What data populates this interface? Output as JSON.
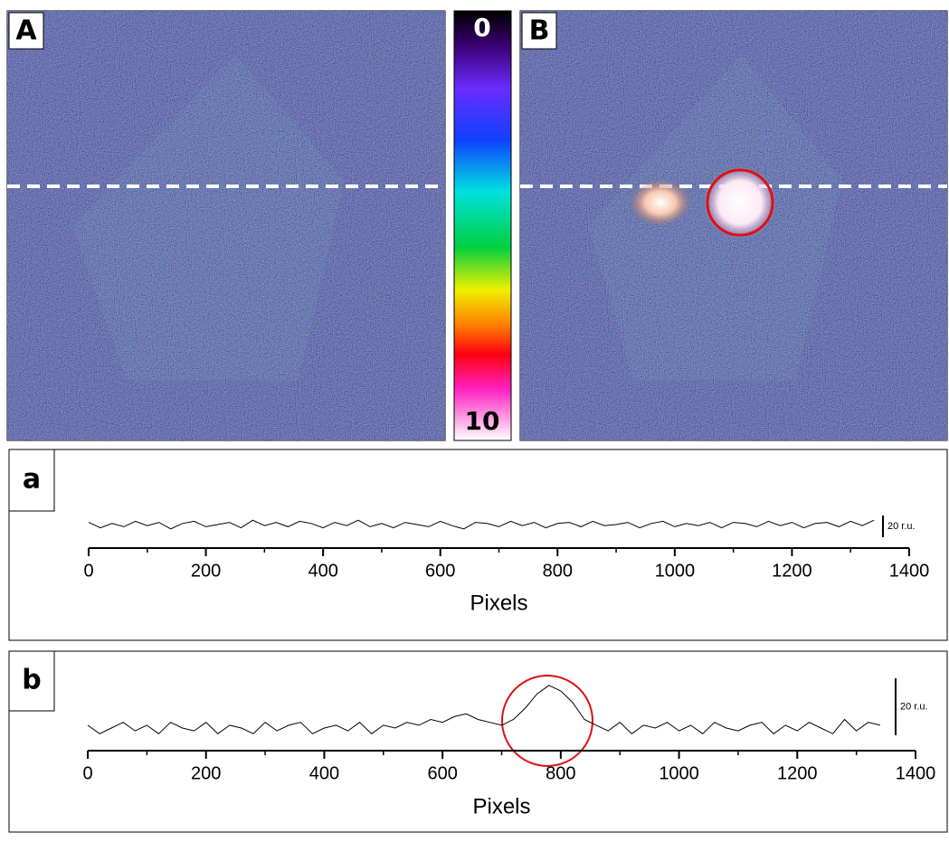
{
  "chart_data": [
    {
      "type": "image",
      "label": "A"
    },
    {
      "type": "colorbar",
      "lim": [
        0,
        10
      ],
      "ticks": [
        0,
        10
      ]
    },
    {
      "type": "image",
      "label": "B"
    },
    {
      "type": "line",
      "label": "a",
      "xlabel": "Pixels",
      "xlim": [
        0,
        1400
      ],
      "xticks": [
        0,
        200,
        400,
        600,
        800,
        1000,
        1200,
        1400
      ],
      "xminorticks": [
        100,
        300,
        500,
        700,
        900,
        1100,
        1300
      ],
      "scale_bar": {
        "value": 20,
        "label": "20 r.u."
      },
      "color": "#000000",
      "x": [
        0,
        20,
        40,
        60,
        80,
        100,
        120,
        140,
        160,
        180,
        200,
        220,
        240,
        260,
        280,
        300,
        320,
        340,
        360,
        380,
        400,
        420,
        440,
        460,
        480,
        500,
        520,
        540,
        560,
        580,
        600,
        620,
        640,
        660,
        680,
        700,
        720,
        740,
        760,
        780,
        800,
        820,
        840,
        860,
        880,
        900,
        920,
        940,
        960,
        980,
        1000,
        1020,
        1040,
        1060,
        1080,
        1100,
        1120,
        1140,
        1160,
        1180,
        1200,
        1220,
        1240,
        1260,
        1280,
        1300,
        1320,
        1340
      ],
      "values": [
        2,
        -3,
        1,
        -2,
        3,
        -1,
        2,
        -4,
        1,
        3,
        -2,
        0,
        2,
        -3,
        4,
        -1,
        2,
        -2,
        3,
        1,
        -3,
        2,
        -1,
        4,
        -2,
        1,
        -3,
        2,
        0,
        -2,
        3,
        -1,
        -4,
        2,
        1,
        -2,
        3,
        -1,
        2,
        -3,
        1,
        2,
        -2,
        3,
        -1,
        0,
        2,
        -3,
        1,
        3,
        -2,
        1,
        -1,
        2,
        -3,
        2,
        1,
        -2,
        3,
        -1,
        2,
        -3,
        1,
        2,
        -2,
        3,
        -1,
        4
      ]
    },
    {
      "type": "line",
      "label": "b",
      "xlabel": "Pixels",
      "xlim": [
        0,
        1400
      ],
      "xticks": [
        0,
        200,
        400,
        600,
        800,
        1000,
        1200,
        1400
      ],
      "xminorticks": [
        100,
        300,
        500,
        700,
        900,
        1100,
        1300
      ],
      "scale_bar": {
        "value": 20,
        "label": "20 r.u."
      },
      "color": "#000000",
      "x": [
        0,
        20,
        40,
        60,
        80,
        100,
        120,
        140,
        160,
        180,
        200,
        220,
        240,
        260,
        280,
        300,
        320,
        340,
        360,
        380,
        400,
        420,
        440,
        460,
        480,
        500,
        520,
        540,
        560,
        580,
        600,
        620,
        640,
        660,
        680,
        700,
        720,
        740,
        760,
        780,
        800,
        820,
        840,
        860,
        880,
        900,
        920,
        940,
        960,
        980,
        1000,
        1020,
        1040,
        1060,
        1080,
        1100,
        1120,
        1140,
        1160,
        1180,
        1200,
        1220,
        1240,
        1260,
        1280,
        1300,
        1320,
        1340
      ],
      "values": [
        1,
        -2,
        0,
        2,
        -1,
        1,
        -2,
        2,
        0,
        -1,
        2,
        -2,
        1,
        0,
        -2,
        2,
        -1,
        1,
        2,
        -2,
        0,
        1,
        -1,
        2,
        -2,
        1,
        0,
        2,
        1,
        3,
        2,
        4,
        5,
        3,
        2,
        1,
        3,
        7,
        12,
        15,
        13,
        9,
        3,
        1,
        -1,
        2,
        -2,
        1,
        0,
        2,
        -1,
        1,
        -2,
        2,
        0,
        -1,
        1,
        2,
        -2,
        1,
        -1,
        2,
        0,
        -2,
        3,
        -1,
        2,
        1
      ]
    }
  ]
}
